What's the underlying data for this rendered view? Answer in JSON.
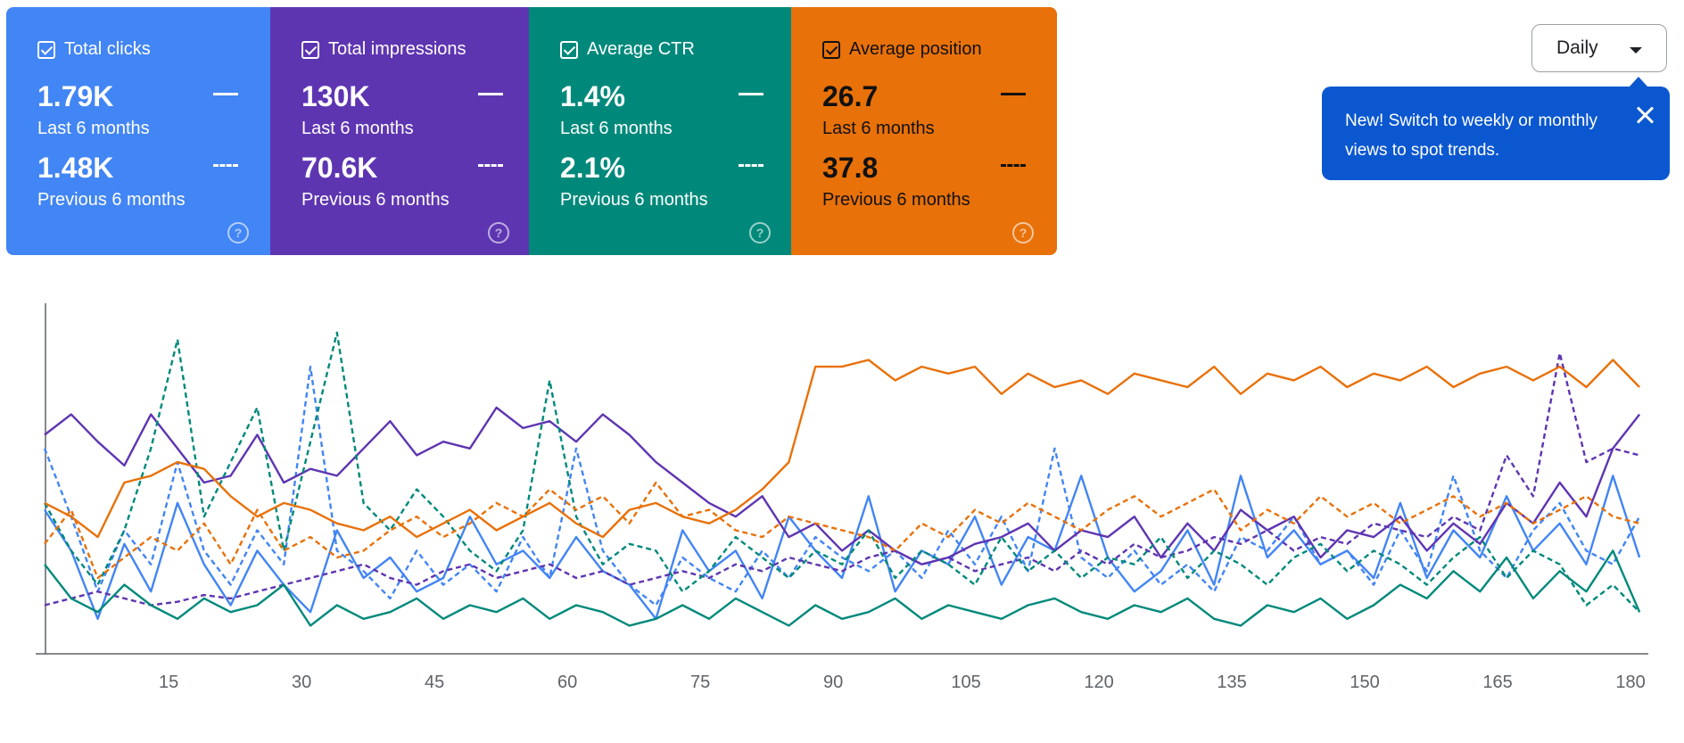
{
  "metrics": [
    {
      "label": "Total clicks",
      "current_value": "1.79K",
      "current_period": "Last 6 months",
      "previous_value": "1.48K",
      "previous_period": "Previous 6 months",
      "color": "#4285f4",
      "help_icon": "help-circle-icon"
    },
    {
      "label": "Total impressions",
      "current_value": "130K",
      "current_period": "Last 6 months",
      "previous_value": "70.6K",
      "previous_period": "Previous 6 months",
      "color": "#5e35b1",
      "help_icon": "help-circle-icon"
    },
    {
      "label": "Average CTR",
      "current_value": "1.4%",
      "current_period": "Last 6 months",
      "previous_value": "2.1%",
      "previous_period": "Previous 6 months",
      "color": "#00897b",
      "help_icon": "help-circle-icon"
    },
    {
      "label": "Average position",
      "current_value": "26.7",
      "current_period": "Last 6 months",
      "previous_value": "37.8",
      "previous_period": "Previous 6 months",
      "color": "#e8710a",
      "help_icon": "help-circle-icon"
    }
  ],
  "period_select": {
    "value": "Daily"
  },
  "tooltip": {
    "text": "New! Switch to weekly or monthly views to spot trends."
  },
  "help_glyph": "?",
  "chart_data": {
    "type": "line",
    "x_range": [
      1,
      182
    ],
    "x_ticks": [
      15,
      30,
      45,
      60,
      75,
      90,
      105,
      120,
      135,
      150,
      165,
      180
    ],
    "y_range": [
      0,
      100
    ],
    "y_axis_labels": "none",
    "grid": false,
    "series_note": "y values in the chart's relative (unlabeled) scale, per metric, sampled every 3 days",
    "series": [
      {
        "metric": "Total clicks",
        "period": "Last 6 months",
        "color": "#4285f4",
        "style": "solid",
        "x": [
          1,
          4,
          7,
          10,
          13,
          16,
          19,
          22,
          25,
          28,
          31,
          34,
          37,
          40,
          43,
          46,
          49,
          52,
          55,
          58,
          61,
          64,
          67,
          70,
          73,
          76,
          79,
          82,
          85,
          88,
          91,
          94,
          97,
          100,
          103,
          106,
          109,
          112,
          115,
          118,
          121,
          124,
          127,
          130,
          133,
          136,
          139,
          142,
          145,
          148,
          151,
          154,
          157,
          160,
          163,
          166,
          169,
          172,
          175,
          178,
          181
        ],
        "y": [
          42,
          30,
          10,
          32,
          18,
          44,
          26,
          14,
          30,
          20,
          12,
          36,
          22,
          28,
          18,
          22,
          40,
          26,
          30,
          22,
          34,
          24,
          20,
          10,
          36,
          24,
          30,
          16,
          40,
          30,
          22,
          46,
          18,
          30,
          26,
          40,
          20,
          34,
          30,
          52,
          28,
          18,
          24,
          36,
          20,
          52,
          28,
          36,
          26,
          30,
          22,
          44,
          22,
          36,
          28,
          46,
          30,
          38,
          26,
          52,
          28
        ]
      },
      {
        "metric": "Total clicks",
        "period": "Previous 6 months",
        "color": "#4285f4",
        "style": "dashed",
        "x": [
          1,
          4,
          7,
          10,
          13,
          16,
          19,
          22,
          25,
          28,
          31,
          34,
          37,
          40,
          43,
          46,
          49,
          52,
          55,
          58,
          61,
          64,
          67,
          70,
          73,
          76,
          79,
          82,
          85,
          88,
          91,
          94,
          97,
          100,
          103,
          106,
          109,
          112,
          115,
          118,
          121,
          124,
          127,
          130,
          133,
          136,
          139,
          142,
          145,
          148,
          151,
          154,
          157,
          160,
          163,
          166,
          169,
          172,
          175,
          178,
          181
        ],
        "y": [
          60,
          40,
          18,
          36,
          26,
          56,
          30,
          20,
          36,
          26,
          84,
          30,
          24,
          16,
          30,
          20,
          26,
          18,
          34,
          22,
          60,
          30,
          20,
          14,
          28,
          22,
          18,
          30,
          22,
          34,
          28,
          24,
          30,
          22,
          36,
          26,
          40,
          24,
          60,
          28,
          22,
          30,
          20,
          26,
          18,
          34,
          30,
          40,
          26,
          30,
          20,
          36,
          24,
          52,
          30,
          22,
          36,
          44,
          30,
          26,
          40
        ]
      },
      {
        "metric": "Total impressions",
        "period": "Last 6 months",
        "color": "#5e35b1",
        "style": "solid",
        "x": [
          1,
          4,
          7,
          10,
          13,
          16,
          19,
          22,
          25,
          28,
          31,
          34,
          37,
          40,
          43,
          46,
          49,
          52,
          55,
          58,
          61,
          64,
          67,
          70,
          73,
          76,
          79,
          82,
          85,
          88,
          91,
          94,
          97,
          100,
          103,
          106,
          109,
          112,
          115,
          118,
          121,
          124,
          127,
          130,
          133,
          136,
          139,
          142,
          145,
          148,
          151,
          154,
          157,
          160,
          163,
          166,
          169,
          172,
          175,
          178,
          181
        ],
        "y": [
          64,
          70,
          62,
          55,
          70,
          60,
          50,
          52,
          64,
          50,
          54,
          52,
          60,
          68,
          58,
          62,
          60,
          72,
          66,
          68,
          62,
          70,
          64,
          56,
          50,
          44,
          40,
          46,
          34,
          38,
          30,
          36,
          30,
          26,
          28,
          32,
          34,
          38,
          30,
          36,
          34,
          40,
          28,
          38,
          30,
          42,
          36,
          40,
          28,
          36,
          34,
          40,
          30,
          38,
          32,
          44,
          38,
          50,
          40,
          60,
          70
        ]
      },
      {
        "metric": "Total impressions",
        "period": "Previous 6 months",
        "color": "#5e35b1",
        "style": "dashed",
        "x": [
          1,
          4,
          7,
          10,
          13,
          16,
          19,
          22,
          25,
          28,
          31,
          34,
          37,
          40,
          43,
          46,
          49,
          52,
          55,
          58,
          61,
          64,
          67,
          70,
          73,
          76,
          79,
          82,
          85,
          88,
          91,
          94,
          97,
          100,
          103,
          106,
          109,
          112,
          115,
          118,
          121,
          124,
          127,
          130,
          133,
          136,
          139,
          142,
          145,
          148,
          151,
          154,
          157,
          160,
          163,
          166,
          169,
          172,
          175,
          178,
          181
        ],
        "y": [
          14,
          16,
          18,
          16,
          14,
          15,
          17,
          16,
          18,
          20,
          22,
          24,
          26,
          22,
          20,
          24,
          26,
          22,
          24,
          26,
          22,
          24,
          20,
          22,
          24,
          22,
          26,
          24,
          28,
          26,
          24,
          28,
          30,
          26,
          28,
          24,
          26,
          28,
          24,
          30,
          26,
          32,
          28,
          30,
          34,
          32,
          36,
          30,
          34,
          32,
          38,
          36,
          34,
          40,
          36,
          58,
          46,
          88,
          56,
          60,
          58
        ]
      },
      {
        "metric": "Average CTR",
        "period": "Last 6 months",
        "color": "#00897b",
        "style": "solid",
        "x": [
          1,
          4,
          7,
          10,
          13,
          16,
          19,
          22,
          25,
          28,
          31,
          34,
          37,
          40,
          43,
          46,
          49,
          52,
          55,
          58,
          61,
          64,
          67,
          70,
          73,
          76,
          79,
          82,
          85,
          88,
          91,
          94,
          97,
          100,
          103,
          106,
          109,
          112,
          115,
          118,
          121,
          124,
          127,
          130,
          133,
          136,
          139,
          142,
          145,
          148,
          151,
          154,
          157,
          160,
          163,
          166,
          169,
          172,
          175,
          178,
          181
        ],
        "y": [
          26,
          16,
          12,
          20,
          14,
          10,
          16,
          12,
          14,
          20,
          8,
          14,
          10,
          12,
          16,
          10,
          14,
          12,
          16,
          10,
          14,
          12,
          8,
          10,
          14,
          10,
          16,
          12,
          8,
          14,
          10,
          12,
          16,
          10,
          14,
          12,
          10,
          14,
          16,
          12,
          10,
          14,
          12,
          16,
          10,
          8,
          14,
          12,
          16,
          10,
          14,
          20,
          16,
          24,
          18,
          28,
          16,
          24,
          18,
          30,
          12
        ]
      },
      {
        "metric": "Average CTR",
        "period": "Previous 6 months",
        "color": "#00897b",
        "style": "dashed",
        "x": [
          1,
          4,
          7,
          10,
          13,
          16,
          19,
          22,
          25,
          28,
          31,
          34,
          37,
          40,
          43,
          46,
          49,
          52,
          55,
          58,
          61,
          64,
          67,
          70,
          73,
          76,
          79,
          82,
          85,
          88,
          91,
          94,
          97,
          100,
          103,
          106,
          109,
          112,
          115,
          118,
          121,
          124,
          127,
          130,
          133,
          136,
          139,
          142,
          145,
          148,
          151,
          154,
          157,
          160,
          163,
          166,
          169,
          172,
          175,
          178,
          181
        ],
        "y": [
          44,
          30,
          20,
          36,
          60,
          92,
          40,
          56,
          72,
          30,
          62,
          94,
          44,
          36,
          48,
          40,
          30,
          24,
          36,
          80,
          40,
          26,
          32,
          30,
          18,
          24,
          34,
          28,
          22,
          30,
          26,
          36,
          22,
          30,
          26,
          20,
          34,
          24,
          30,
          22,
          28,
          26,
          34,
          22,
          30,
          26,
          20,
          28,
          32,
          24,
          30,
          26,
          20,
          28,
          34,
          22,
          30,
          26,
          14,
          20,
          12
        ]
      },
      {
        "metric": "Average position",
        "period": "Last 6 months",
        "color": "#e8710a",
        "style": "solid",
        "x": [
          1,
          4,
          7,
          10,
          13,
          16,
          19,
          22,
          25,
          28,
          31,
          34,
          37,
          40,
          43,
          46,
          49,
          52,
          55,
          58,
          61,
          64,
          67,
          70,
          73,
          76,
          79,
          82,
          85,
          88,
          91,
          94,
          97,
          100,
          103,
          106,
          109,
          112,
          115,
          118,
          121,
          124,
          127,
          130,
          133,
          136,
          139,
          142,
          145,
          148,
          151,
          154,
          157,
          160,
          163,
          166,
          169,
          172,
          175,
          178,
          181
        ],
        "y": [
          44,
          40,
          34,
          50,
          52,
          56,
          54,
          46,
          40,
          44,
          42,
          38,
          36,
          40,
          34,
          38,
          42,
          36,
          40,
          44,
          38,
          34,
          42,
          44,
          40,
          38,
          42,
          48,
          56,
          84,
          84,
          86,
          80,
          84,
          82,
          84,
          76,
          82,
          78,
          80,
          76,
          82,
          80,
          78,
          84,
          76,
          82,
          80,
          84,
          78,
          82,
          80,
          84,
          78,
          82,
          84,
          80,
          84,
          78,
          86,
          78
        ]
      },
      {
        "metric": "Average position",
        "period": "Previous 6 months",
        "color": "#e8710a",
        "style": "dashed",
        "x": [
          1,
          4,
          7,
          10,
          13,
          16,
          19,
          22,
          25,
          28,
          31,
          34,
          37,
          40,
          43,
          46,
          49,
          52,
          55,
          58,
          61,
          64,
          67,
          70,
          73,
          76,
          79,
          82,
          85,
          88,
          91,
          94,
          97,
          100,
          103,
          106,
          109,
          112,
          115,
          118,
          121,
          124,
          127,
          130,
          133,
          136,
          139,
          142,
          145,
          148,
          151,
          154,
          157,
          160,
          163,
          166,
          169,
          172,
          175,
          178,
          181
        ],
        "y": [
          32,
          42,
          22,
          28,
          34,
          30,
          38,
          26,
          42,
          30,
          34,
          28,
          30,
          36,
          40,
          34,
          38,
          44,
          40,
          48,
          42,
          46,
          38,
          50,
          40,
          42,
          36,
          34,
          40,
          38,
          36,
          34,
          30,
          38,
          34,
          42,
          38,
          44,
          40,
          36,
          42,
          46,
          40,
          44,
          48,
          36,
          42,
          38,
          46,
          40,
          44,
          38,
          42,
          46,
          40,
          44,
          38,
          42,
          46,
          40,
          38
        ]
      }
    ]
  }
}
